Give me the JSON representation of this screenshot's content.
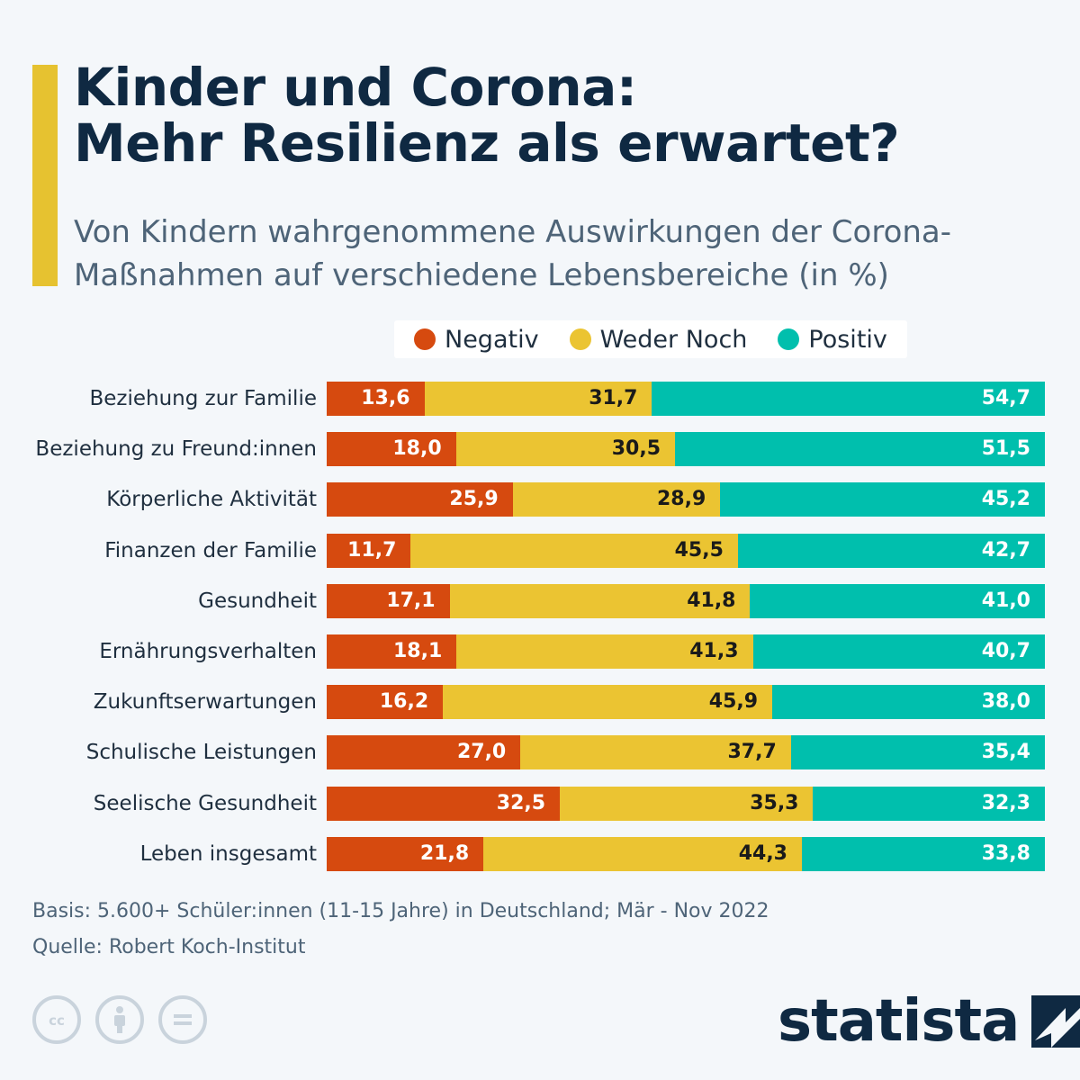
{
  "header": {
    "title_line1": "Kinder und Corona:",
    "title_line2": "Mehr Resilienz als erwartet?",
    "subtitle": "Von Kindern wahrgenommene Auswirkungen der Corona-Maßnahmen auf verschiedene Lebensbereiche (in %)"
  },
  "colors": {
    "negativ": "#d64a0f",
    "weder_noch": "#ebc432",
    "positiv": "#00bfad",
    "accent": "#e6c230",
    "title": "#0f2942"
  },
  "chart_data": {
    "type": "bar",
    "orientation": "horizontal",
    "stacked": true,
    "title": "Kinder und Corona: Mehr Resilienz als erwartet?",
    "subtitle": "Von Kindern wahrgenommene Auswirkungen der Corona-Maßnahmen auf verschiedene Lebensbereiche (in %)",
    "legend_position": "top",
    "categories": [
      "Beziehung zur Familie",
      "Beziehung zu Freund:innen",
      "Körperliche Aktivität",
      "Finanzen der Familie",
      "Gesundheit",
      "Ernährungsverhalten",
      "Zukunftserwartungen",
      "Schulische Leistungen",
      "Seelische Gesundheit",
      "Leben insgesamt"
    ],
    "series": [
      {
        "name": "Negativ",
        "values": [
          13.6,
          18.0,
          25.9,
          11.7,
          17.1,
          18.1,
          16.2,
          27.0,
          32.5,
          21.8
        ],
        "labels": [
          "13,6",
          "18,0",
          "25,9",
          "11,7",
          "17,1",
          "18,1",
          "16,2",
          "27,0",
          "32,5",
          "21,8"
        ]
      },
      {
        "name": "Weder Noch",
        "values": [
          31.7,
          30.5,
          28.9,
          45.5,
          41.8,
          41.3,
          45.9,
          37.7,
          35.3,
          44.3
        ],
        "labels": [
          "31,7",
          "30,5",
          "28,9",
          "45,5",
          "41,8",
          "41,3",
          "45,9",
          "37,7",
          "35,3",
          "44,3"
        ]
      },
      {
        "name": "Positiv",
        "values": [
          54.7,
          51.5,
          45.2,
          42.7,
          41.0,
          40.7,
          38.0,
          35.4,
          32.3,
          33.8
        ],
        "labels": [
          "54,7",
          "51,5",
          "45,2",
          "42,7",
          "41,0",
          "40,7",
          "38,0",
          "35,4",
          "32,3",
          "33,8"
        ]
      }
    ]
  },
  "footer": {
    "basis": "Basis: 5.600+ Schüler:innen (11-15 Jahre) in Deutschland; Mär - Nov 2022",
    "source": "Quelle: Robert Koch-Institut",
    "brand": "statista",
    "license_icons": [
      "cc-icon",
      "attribution-icon",
      "no-derivatives-icon"
    ]
  }
}
